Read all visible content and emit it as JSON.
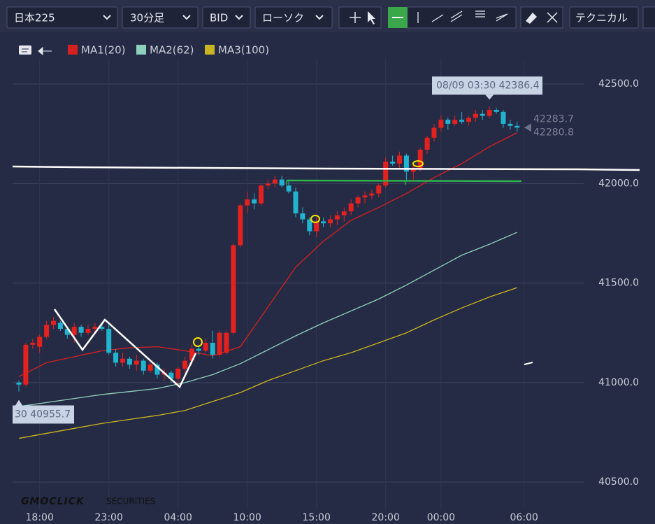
{
  "toolbar": {
    "symbol": "日本225",
    "timeframe": "30分足",
    "side": "BID",
    "chart_style": "ローソク",
    "technical": "テクニカル"
  },
  "logo": {
    "brand": "GMOCLICK",
    "suffix": "SECURITIES"
  },
  "chart_data": {
    "type": "candlestick",
    "categories": [
      null,
      null,
      null,
      "18:00",
      null,
      null,
      null,
      null,
      null,
      null,
      null,
      null,
      null,
      "23:00",
      null,
      null,
      null,
      null,
      null,
      null,
      null,
      null,
      null,
      "04:00",
      null,
      null,
      null,
      null,
      null,
      null,
      null,
      null,
      null,
      "10:00",
      null,
      null,
      null,
      null,
      null,
      null,
      null,
      null,
      null,
      "15:00",
      null,
      null,
      null,
      null,
      null,
      null,
      null,
      null,
      null,
      "20:00",
      null,
      null,
      null,
      null,
      null,
      null,
      null,
      "00:00",
      null,
      null,
      null,
      null,
      null,
      null,
      null,
      null,
      null,
      null,
      null,
      "06:00"
    ],
    "open": [
      41000,
      40990,
      41190,
      41180,
      41230,
      41290,
      41300,
      41270,
      41240,
      41280,
      41250,
      41270,
      41280,
      41270,
      41150,
      41100,
      41120,
      41090,
      41110,
      41060,
      41090,
      41040,
      41050,
      41020,
      41070,
      41110,
      41170,
      41160,
      41200,
      41140,
      41150,
      41250,
      41690,
      41890,
      41920,
      41900,
      41990,
      42000,
      42020,
      41990,
      41960,
      41850,
      41820,
      41760,
      41810,
      41800,
      41820,
      41840,
      41860,
      41900,
      41930,
      41940,
      41950,
      41990,
      42110,
      42100,
      42140,
      42060,
      42070,
      42170,
      42230,
      42280,
      42320,
      42300,
      42320,
      42310,
      42330,
      42350,
      42340,
      42370,
      42360,
      42300,
      42290,
      null
    ],
    "high": [
      41010,
      41200,
      41220,
      41240,
      41310,
      41330,
      41310,
      41280,
      41300,
      41290,
      41290,
      41300,
      41300,
      41290,
      41170,
      41150,
      41130,
      41140,
      41120,
      41100,
      41100,
      41070,
      41060,
      41080,
      41130,
      41190,
      41180,
      41220,
      41260,
      41260,
      41260,
      41700,
      41900,
      41960,
      41950,
      42000,
      42020,
      42040,
      42040,
      42020,
      41980,
      41880,
      41830,
      41830,
      41830,
      41840,
      41860,
      41880,
      41920,
      41940,
      41960,
      41970,
      42000,
      42130,
      42140,
      42160,
      42150,
      42100,
      42180,
      42240,
      42300,
      42340,
      42330,
      42340,
      42360,
      42340,
      42370,
      42370,
      42386.4,
      42380,
      42370,
      42320,
      42310,
      null
    ],
    "low": [
      40955.7,
      40980,
      41170,
      41150,
      41220,
      41270,
      41260,
      41220,
      41200,
      41230,
      41240,
      41250,
      41260,
      41140,
      41080,
      41080,
      41070,
      41060,
      41040,
      41050,
      41020,
      41010,
      41000,
      40990,
      41050,
      41090,
      41140,
      41150,
      41120,
      41130,
      41140,
      41240,
      41680,
      41850,
      41870,
      41890,
      41970,
      41980,
      41980,
      41950,
      41830,
      41800,
      41740,
      41730,
      41780,
      41780,
      41790,
      41810,
      41840,
      41880,
      41900,
      41920,
      41930,
      41980,
      42090,
      42070,
      42010,
      42020,
      42060,
      42150,
      42210,
      42260,
      42270,
      42290,
      42300,
      42290,
      42310,
      42320,
      42330,
      42350,
      42280,
      42270,
      42260,
      null
    ],
    "close": [
      40990,
      41190,
      41200,
      41230,
      41290,
      41310,
      41270,
      41240,
      41280,
      41250,
      41270,
      41280,
      41270,
      41150,
      41100,
      41120,
      41090,
      41110,
      41060,
      41090,
      41040,
      41050,
      41020,
      41070,
      41110,
      41170,
      41160,
      41200,
      41140,
      41250,
      41250,
      41690,
      41890,
      41920,
      41900,
      41990,
      42000,
      42020,
      41990,
      41960,
      41850,
      41820,
      41760,
      41810,
      41800,
      41820,
      41840,
      41860,
      41900,
      41930,
      41940,
      41950,
      41990,
      42110,
      42100,
      42140,
      42060,
      42070,
      42170,
      42230,
      42280,
      42320,
      42300,
      42320,
      42310,
      42330,
      42350,
      42340,
      42370,
      42360,
      42300,
      42290,
      42280.8,
      null
    ],
    "up_color": "#e3211f",
    "down_color": "#22b3cf",
    "lines": [
      {
        "name": "MA1(20)",
        "color": "#d42020",
        "x": [
          0,
          4,
          8,
          12,
          16,
          20,
          24,
          28,
          32,
          36,
          40,
          44,
          48,
          52,
          56,
          60,
          64,
          68,
          72
        ],
        "values": [
          41030,
          41100,
          41130,
          41160,
          41175,
          41180,
          41160,
          41135,
          41180,
          41380,
          41580,
          41710,
          41815,
          41880,
          41950,
          42030,
          42100,
          42185,
          42255
        ]
      },
      {
        "name": "MA2(62)",
        "color": "#8fd0bd",
        "x": [
          0,
          4,
          8,
          12,
          16,
          20,
          24,
          28,
          32,
          36,
          40,
          44,
          48,
          52,
          56,
          60,
          64,
          68,
          72
        ],
        "values": [
          40880,
          40900,
          40920,
          40940,
          40955,
          40970,
          41000,
          41040,
          41095,
          41165,
          41235,
          41300,
          41360,
          41420,
          41490,
          41565,
          41640,
          41695,
          41755
        ]
      },
      {
        "name": "MA3(100)",
        "color": "#c9b521",
        "x": [
          0,
          4,
          8,
          12,
          16,
          20,
          24,
          28,
          32,
          36,
          40,
          44,
          48,
          52,
          56,
          60,
          64,
          68,
          72
        ],
        "values": [
          40720,
          40745,
          40770,
          40795,
          40815,
          40835,
          40860,
          40905,
          40950,
          41010,
          41060,
          41110,
          41150,
          41200,
          41250,
          41315,
          41375,
          41430,
          41477
        ]
      }
    ],
    "ylim": [
      40367,
      42588
    ],
    "yticks": [
      {
        "value": 40500,
        "label": "40500.0"
      },
      {
        "value": 41000,
        "label": "41000.0"
      },
      {
        "value": 41500,
        "label": "41500.0"
      },
      {
        "value": 42000,
        "label": "42000.0"
      },
      {
        "value": 42500,
        "label": "42500.0"
      }
    ],
    "current_prices": [
      42283.7,
      42280.8
    ],
    "annotations": {
      "high": "08/09 03:30 42386.4",
      "low": "30 40955.7"
    },
    "grid": true
  }
}
